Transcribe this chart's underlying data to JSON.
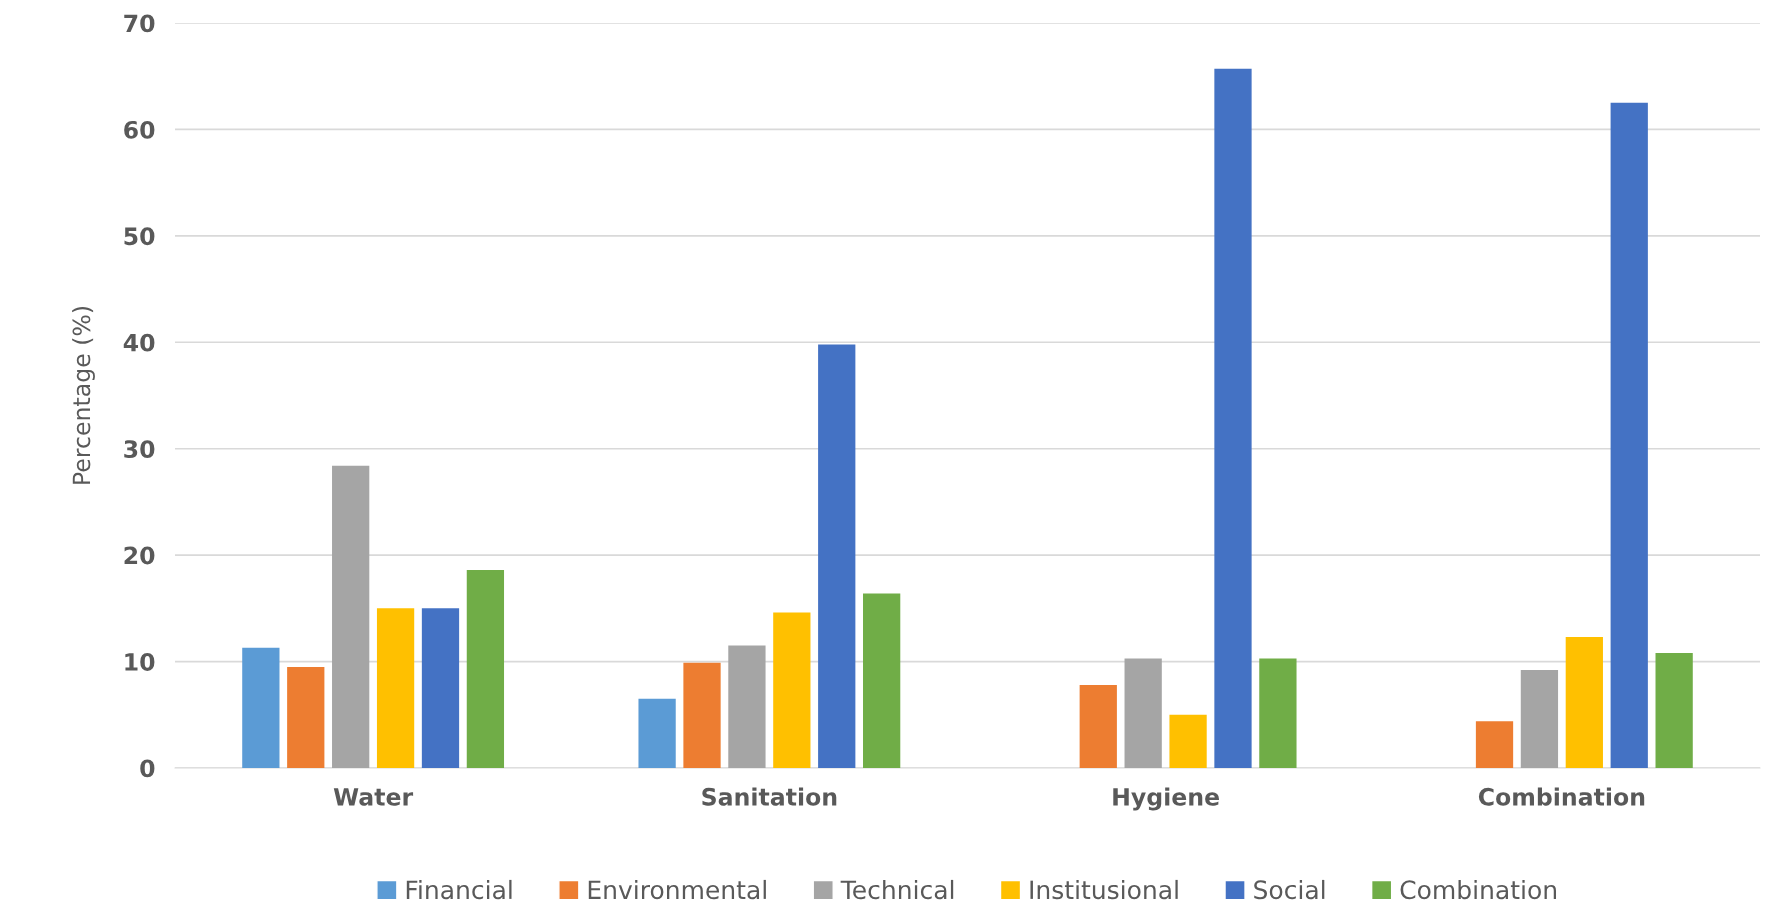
{
  "chart_data": {
    "type": "bar",
    "ylabel": "Percentage (%)",
    "categories": [
      "Water",
      "Sanitation",
      "Hygiene",
      "Combination"
    ],
    "series": [
      {
        "name": "Financial",
        "color": "#5b9bd5",
        "values": [
          11.3,
          6.5,
          0,
          0
        ]
      },
      {
        "name": "Environmental",
        "color": "#ed7d31",
        "values": [
          9.5,
          9.9,
          7.8,
          4.4
        ]
      },
      {
        "name": "Technical",
        "color": "#a5a5a5",
        "values": [
          28.4,
          11.5,
          10.3,
          9.2
        ]
      },
      {
        "name": "Institusional",
        "color": "#ffc000",
        "values": [
          15.0,
          14.6,
          5.0,
          12.3
        ]
      },
      {
        "name": "Social",
        "color": "#4472c4",
        "values": [
          15.0,
          39.8,
          65.7,
          62.5
        ]
      },
      {
        "name": "Combination",
        "color": "#70ad47",
        "values": [
          18.6,
          16.4,
          10.3,
          10.8
        ]
      }
    ],
    "ylim": [
      0,
      70
    ],
    "yticks": [
      0,
      10,
      20,
      30,
      40,
      50,
      60,
      70
    ],
    "grid": "y",
    "legend": "bottom"
  }
}
